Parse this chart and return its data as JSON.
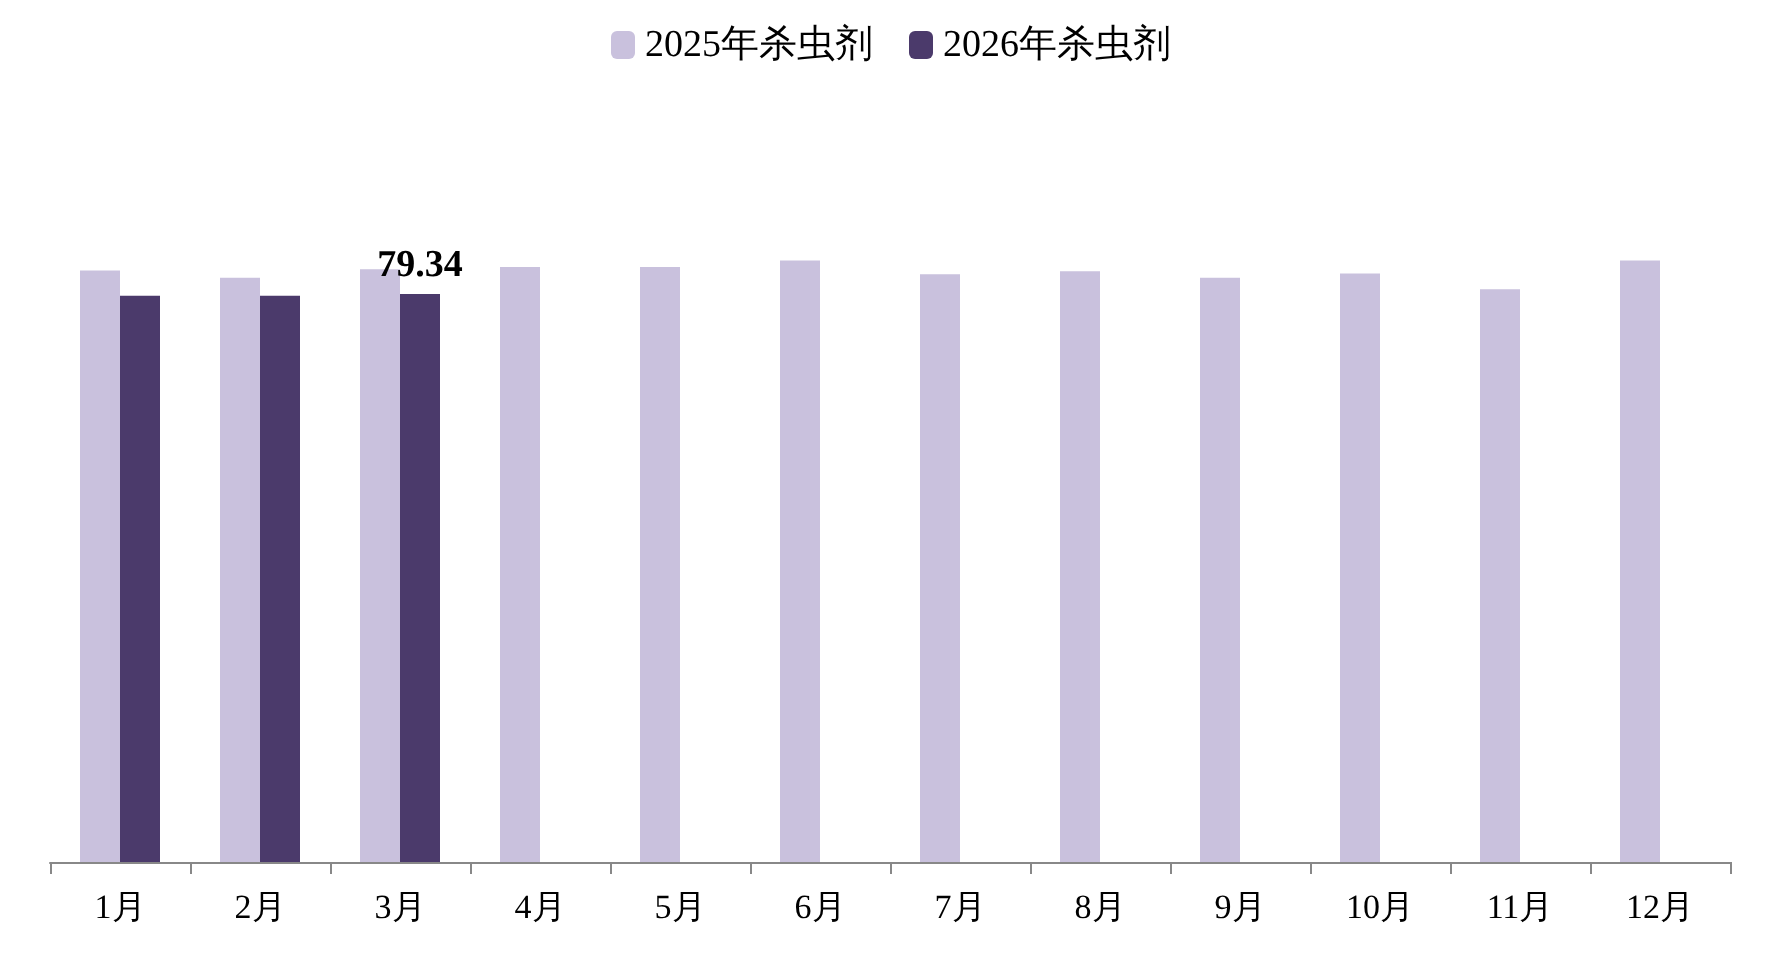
{
  "chart_data": {
    "type": "bar",
    "categories": [
      "1月",
      "2月",
      "3月",
      "4月",
      "5月",
      "6月",
      "7月",
      "8月",
      "9月",
      "10月",
      "11月",
      "12月"
    ],
    "series": [
      {
        "name": "2025年杀虫剂",
        "color": "#c9c1dd",
        "values": [
          82.6,
          81.6,
          82.8,
          83.1,
          83.1,
          84.0,
          82.1,
          82.5,
          81.6,
          82.2,
          80.0,
          84.0
        ]
      },
      {
        "name": "2026年杀虫剂",
        "color": "#4b3a6b",
        "values": [
          79.1,
          79.1,
          79.34,
          null,
          null,
          null,
          null,
          null,
          null,
          null,
          null,
          null
        ],
        "value_labels": [
          null,
          null,
          "79.34",
          null,
          null,
          null,
          null,
          null,
          null,
          null,
          null,
          null
        ]
      }
    ],
    "tick_labels": "x",
    "grid": false,
    "legend": "top"
  }
}
